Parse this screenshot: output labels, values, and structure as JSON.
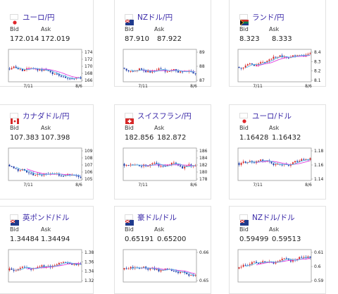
{
  "cards": [
    {
      "pair": "ユーロ/円",
      "flag": "eu",
      "bid_label": "Bid",
      "ask_label": "Ask",
      "bid": "172.014",
      "ask": "172.019",
      "y_ticks": [
        "174",
        "172",
        "170",
        "168",
        "166"
      ],
      "x_ticks": [
        "7/11",
        "8/6"
      ]
    },
    {
      "pair": "NZドル/円",
      "flag": "nz",
      "bid_label": "Bid",
      "ask_label": "Ask",
      "bid": "87.910",
      "ask": "87.922",
      "y_ticks": [
        "89",
        "88",
        "87"
      ],
      "x_ticks": [
        "7/11",
        "8/6"
      ]
    },
    {
      "pair": "ランド/円",
      "flag": "za",
      "bid_label": "Bid",
      "ask_label": "Ask",
      "bid": "8.323",
      "ask": "8.333",
      "y_ticks": [
        "8.4",
        "8.3",
        "8.2",
        "8.1"
      ],
      "x_ticks": [
        "7/11",
        "8/6"
      ]
    },
    {
      "pair": "カナダドル/円",
      "flag": "ca",
      "bid_label": "Bid",
      "ask_label": "Ask",
      "bid": "107.383",
      "ask": "107.398",
      "y_ticks": [
        "109",
        "108",
        "107",
        "106",
        "105"
      ],
      "x_ticks": [
        "7/11",
        "8/6"
      ]
    },
    {
      "pair": "スイスフラン/円",
      "flag": "ch",
      "bid_label": "Bid",
      "ask_label": "Ask",
      "bid": "182.856",
      "ask": "182.872",
      "y_ticks": [
        "186",
        "184",
        "182",
        "180",
        "178"
      ],
      "x_ticks": [
        "7/11",
        "8/6"
      ]
    },
    {
      "pair": "ユーロ/ドル",
      "flag": "eu",
      "bid_label": "Bid",
      "ask_label": "Ask",
      "bid": "1.16428",
      "ask": "1.16432",
      "y_ticks": [
        "1.18",
        "1.16",
        "1.14"
      ],
      "x_ticks": [
        "7/11",
        "8/6"
      ]
    },
    {
      "pair": "英ポンド/ドル",
      "flag": "gb",
      "bid_label": "Bid",
      "ask_label": "Ask",
      "bid": "1.34484",
      "ask": "1.34494",
      "y_ticks": [
        "1.38",
        "1.36",
        "1.34",
        "1.32"
      ],
      "x_ticks": []
    },
    {
      "pair": "豪ドル/ドル",
      "flag": "au",
      "bid_label": "Bid",
      "ask_label": "Ask",
      "bid": "0.65191",
      "ask": "0.65200",
      "y_ticks": [
        "0.66",
        "0.65"
      ],
      "x_ticks": []
    },
    {
      "pair": "NZドル/ドル",
      "flag": "nz",
      "bid_label": "Bid",
      "ask_label": "Ask",
      "bid": "0.59499",
      "ask": "0.59513",
      "y_ticks": [
        "0.61",
        "0.6",
        "0.59"
      ],
      "x_ticks": []
    }
  ],
  "colors": {
    "up": "#d62828",
    "down": "#1d3aa8",
    "ma": "#e040e0",
    "ma2": "#5ab4e6",
    "link": "#3b2aa8"
  }
}
